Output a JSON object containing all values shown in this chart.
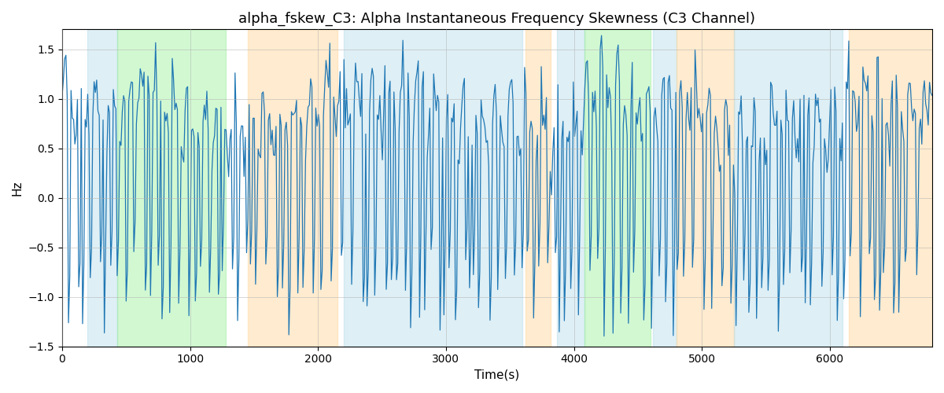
{
  "title": "alpha_fskew_C3: Alpha Instantaneous Frequency Skewness (C3 Channel)",
  "xlabel": "Time(s)",
  "ylabel": "Hz",
  "ylim": [
    -1.5,
    1.7
  ],
  "xlim": [
    0,
    6800
  ],
  "line_color": "#1f77b4",
  "line_width": 0.9,
  "grid_color": "#b0b0b0",
  "grid_alpha": 0.5,
  "title_fontsize": 13,
  "label_fontsize": 11,
  "seed": 42,
  "n_points": 680,
  "colored_bands": [
    {
      "xmin": 200,
      "xmax": 430,
      "color": "#add8e6",
      "alpha": 0.4
    },
    {
      "xmin": 430,
      "xmax": 1280,
      "color": "#90ee90",
      "alpha": 0.4
    },
    {
      "xmin": 1450,
      "xmax": 2150,
      "color": "#ffd9a0",
      "alpha": 0.5
    },
    {
      "xmin": 2200,
      "xmax": 3600,
      "color": "#add8e6",
      "alpha": 0.4
    },
    {
      "xmin": 3620,
      "xmax": 3820,
      "color": "#ffd9a0",
      "alpha": 0.5
    },
    {
      "xmin": 3870,
      "xmax": 4080,
      "color": "#add8e6",
      "alpha": 0.4
    },
    {
      "xmin": 4080,
      "xmax": 4600,
      "color": "#90ee90",
      "alpha": 0.4
    },
    {
      "xmin": 4620,
      "xmax": 4800,
      "color": "#add8e6",
      "alpha": 0.4
    },
    {
      "xmin": 4800,
      "xmax": 5250,
      "color": "#ffd9a0",
      "alpha": 0.5
    },
    {
      "xmin": 5250,
      "xmax": 6100,
      "color": "#add8e6",
      "alpha": 0.4
    },
    {
      "xmin": 6150,
      "xmax": 6800,
      "color": "#ffd9a0",
      "alpha": 0.5
    }
  ]
}
